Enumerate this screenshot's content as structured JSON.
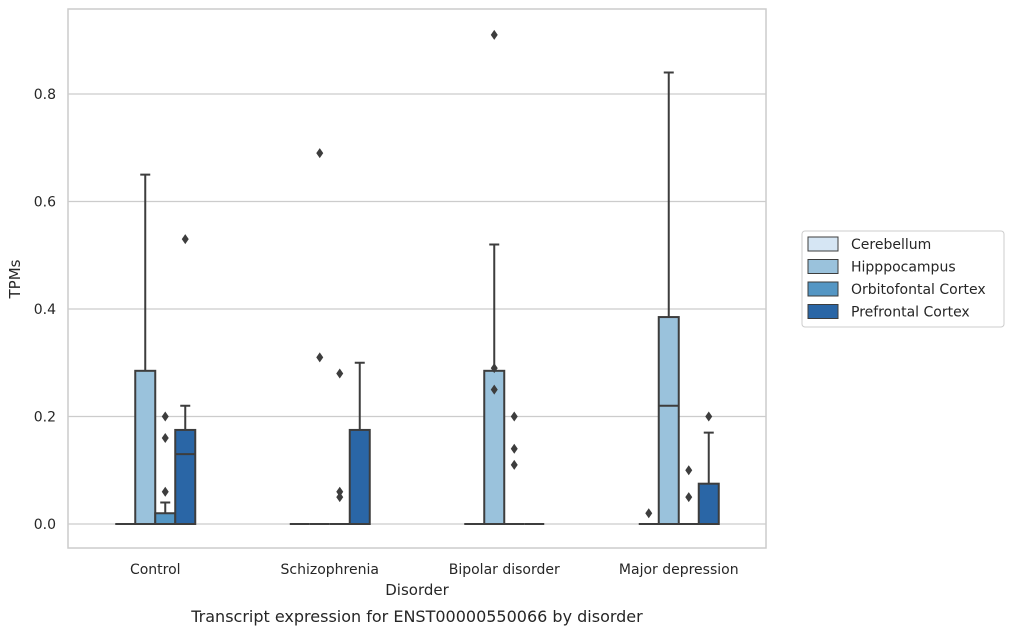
{
  "chart_data": {
    "type": "box",
    "title": "",
    "caption": "Transcript expression for ENST00000550066 by disorder",
    "xlabel": "Disorder",
    "ylabel": "TPMs",
    "ylim": [
      -0.045,
      0.96
    ],
    "yticks": [
      "0.0",
      "0.2",
      "0.4",
      "0.6",
      "0.8"
    ],
    "yticks_values": [
      0,
      0.2,
      0.4,
      0.6,
      0.8
    ],
    "grid": "horizontal",
    "legend_placement": "right",
    "categories": [
      "Control",
      "Schizophrenia",
      "Bipolar disorder",
      "Major depression"
    ],
    "series": [
      {
        "name": "Cerebellum",
        "color": "#d6e6f4",
        "boxes": [
          {
            "q1": 0,
            "median": 0,
            "q3": 0,
            "whislo": 0,
            "whishi": 0,
            "fliers": []
          },
          {
            "q1": 0,
            "median": 0,
            "q3": 0,
            "whislo": 0,
            "whishi": 0,
            "fliers": []
          },
          {
            "q1": 0,
            "median": 0,
            "q3": 0,
            "whislo": 0,
            "whishi": 0,
            "fliers": []
          },
          {
            "q1": 0,
            "median": 0,
            "q3": 0,
            "whislo": 0,
            "whishi": 0,
            "fliers": [
              0.02
            ]
          }
        ]
      },
      {
        "name": "Hipppocampus",
        "color": "#9ac2dc",
        "boxes": [
          {
            "q1": 0,
            "median": 0,
            "q3": 0.285,
            "whislo": 0,
            "whishi": 0.65,
            "fliers": []
          },
          {
            "q1": 0,
            "median": 0,
            "q3": 0,
            "whislo": 0,
            "whishi": 0,
            "fliers": [
              0.69,
              0.31
            ]
          },
          {
            "q1": 0,
            "median": 0,
            "q3": 0.285,
            "whislo": 0,
            "whishi": 0.52,
            "fliers": [
              0.91,
              0.29,
              0.25
            ]
          },
          {
            "q1": 0,
            "median": 0.22,
            "q3": 0.385,
            "whislo": 0,
            "whishi": 0.84,
            "fliers": []
          }
        ]
      },
      {
        "name": "Orbitofontal Cortex",
        "color": "#5496c4",
        "boxes": [
          {
            "q1": 0,
            "median": 0,
            "q3": 0.02,
            "whislo": 0,
            "whishi": 0.04,
            "fliers": [
              0.2,
              0.16,
              0.06
            ]
          },
          {
            "q1": 0,
            "median": 0,
            "q3": 0,
            "whislo": 0,
            "whishi": 0,
            "fliers": [
              0.28,
              0.06,
              0.05
            ]
          },
          {
            "q1": 0,
            "median": 0,
            "q3": 0,
            "whislo": 0,
            "whishi": 0,
            "fliers": [
              0.2,
              0.14,
              0.11
            ]
          },
          {
            "q1": 0,
            "median": 0,
            "q3": 0,
            "whislo": 0,
            "whishi": 0,
            "fliers": [
              0.1,
              0.05
            ]
          }
        ]
      },
      {
        "name": "Prefrontal Cortex",
        "color": "#2a66a6",
        "boxes": [
          {
            "q1": 0,
            "median": 0.13,
            "q3": 0.175,
            "whislo": 0,
            "whishi": 0.22,
            "fliers": [
              0.53
            ]
          },
          {
            "q1": 0,
            "median": 0,
            "q3": 0.175,
            "whislo": 0,
            "whishi": 0.3,
            "fliers": []
          },
          {
            "q1": 0,
            "median": 0,
            "q3": 0,
            "whislo": 0,
            "whishi": 0,
            "fliers": []
          },
          {
            "q1": 0,
            "median": 0,
            "q3": 0.075,
            "whislo": 0,
            "whishi": 0.17,
            "fliers": [
              0.2
            ]
          }
        ]
      }
    ]
  }
}
